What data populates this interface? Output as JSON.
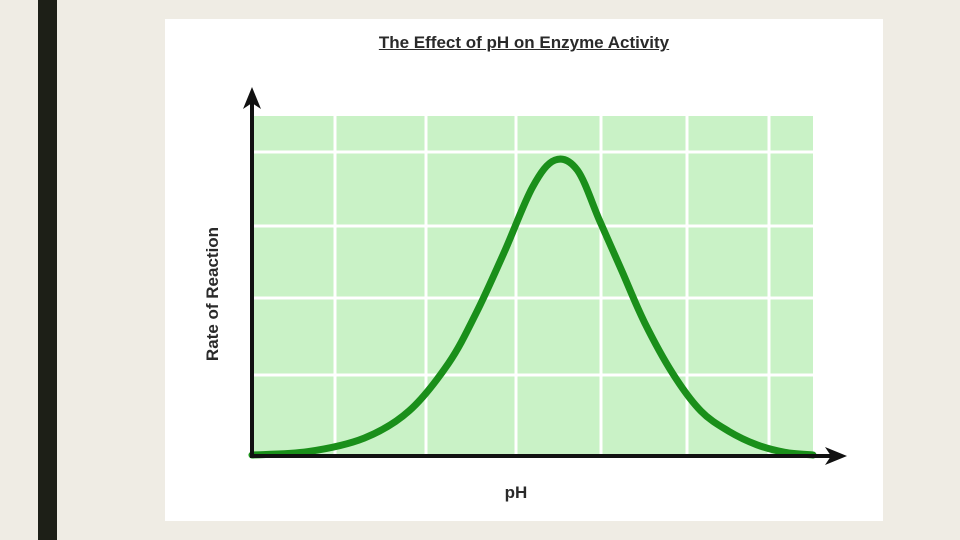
{
  "slide": {
    "bar_color": "#1d1f17",
    "background": "#efece4"
  },
  "chart_data": {
    "type": "line",
    "title": "The Effect of pH on Enzyme Activity",
    "xlabel": "pH",
    "ylabel": "Rate of Reaction",
    "grid": true,
    "legend": "none",
    "colors": {
      "plot_area": "#c9f2c6",
      "grid": "#ffffff",
      "curve": "#1a8f1a",
      "axis": "#111111"
    },
    "xlim": [
      0,
      10
    ],
    "ylim": [
      0,
      10
    ],
    "series": [
      {
        "x": [
          0.0,
          1.0,
          2.0,
          2.8,
          3.5,
          4.0,
          4.5,
          5.0,
          5.4,
          5.8,
          6.2,
          6.6,
          7.0,
          7.5,
          8.0,
          8.5,
          9.0,
          9.5,
          10.0
        ],
        "values": [
          0.0,
          0.1,
          0.5,
          1.3,
          2.7,
          4.2,
          6.0,
          7.9,
          8.7,
          8.4,
          6.9,
          5.4,
          3.9,
          2.4,
          1.3,
          0.7,
          0.3,
          0.08,
          0.0
        ]
      }
    ]
  }
}
